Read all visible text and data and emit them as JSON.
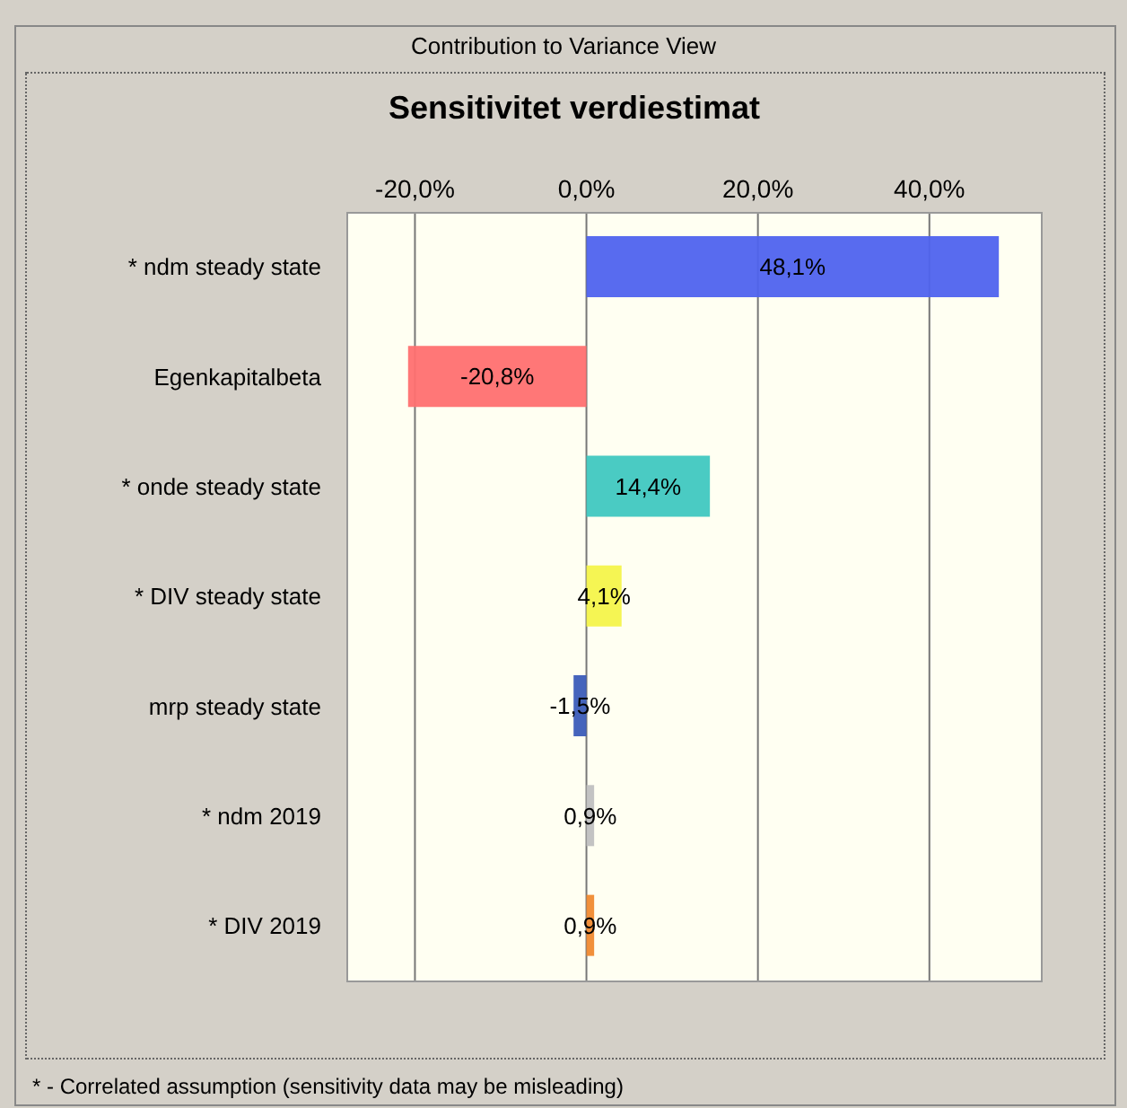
{
  "chart_data": {
    "type": "bar",
    "orientation": "horizontal",
    "title": "Sensitivitet verdiestimat",
    "annotations": [
      "Contribution to Variance View",
      "* - Correlated assumption (sensitivity data may be misleading)"
    ],
    "categories": [
      "* ndm steady state",
      "Egenkapitalbeta",
      "* onde steady state",
      "* DIV steady state",
      "mrp steady state",
      "* ndm 2019",
      "* DIV 2019"
    ],
    "values": [
      48.1,
      -20.8,
      14.4,
      4.1,
      -1.5,
      0.9,
      0.9
    ],
    "colors": [
      "#4f63ee",
      "#ff7070",
      "#40c8c0",
      "#f4f44a",
      "#3b5cb8",
      "#c0c0c0",
      "#f08a30"
    ],
    "value_labels": [
      "48,1%",
      "-20,8%",
      "14,4%",
      "4,1%",
      "-1,5%",
      "0,9%",
      "0,9%"
    ],
    "xlim": [
      -28,
      53
    ],
    "xticks": [
      {
        "value": -20,
        "label": "-20,0%"
      },
      {
        "value": 0,
        "label": "0,0%"
      },
      {
        "value": 20,
        "label": "20,0%"
      },
      {
        "value": 40,
        "label": "40,0%"
      }
    ],
    "grid": "x"
  }
}
